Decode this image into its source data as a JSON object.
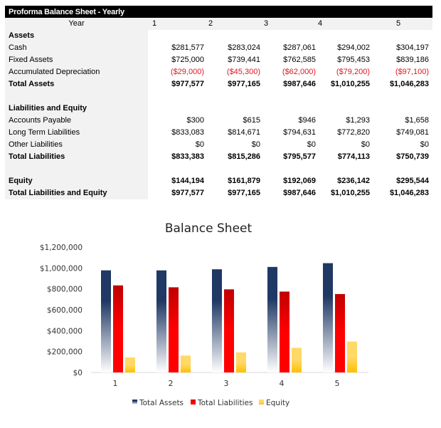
{
  "sheet": {
    "title": "Proforma Balance Sheet - Yearly",
    "year_label": "Year",
    "years": [
      "1",
      "2",
      "3",
      "4",
      "5"
    ],
    "rows": [
      {
        "label": "Assets",
        "bold": true,
        "values": []
      },
      {
        "label": "Cash",
        "values": [
          "$281,577",
          "$283,024",
          "$287,061",
          "$294,002",
          "$304,197"
        ]
      },
      {
        "label": "Fixed Assets",
        "values": [
          "$725,000",
          "$739,441",
          "$762,585",
          "$795,453",
          "$839,186"
        ]
      },
      {
        "label": "Accumulated Depreciation",
        "negative": true,
        "values": [
          "($29,000)",
          "($45,300)",
          "($62,000)",
          "($79,200)",
          "($97,100)"
        ]
      },
      {
        "label": "Total Assets",
        "bold": true,
        "values": [
          "$977,577",
          "$977,165",
          "$987,646",
          "$1,010,255",
          "$1,046,283"
        ]
      },
      {
        "label": "",
        "values": []
      },
      {
        "label": "Liabilities and Equity",
        "bold": true,
        "values": []
      },
      {
        "label": "Accounts Payable",
        "values": [
          "$300",
          "$615",
          "$946",
          "$1,293",
          "$1,658"
        ]
      },
      {
        "label": "Long Term Liabilities",
        "values": [
          "$833,083",
          "$814,671",
          "$794,631",
          "$772,820",
          "$749,081"
        ]
      },
      {
        "label": "Other Liabilities",
        "values": [
          "$0",
          "$0",
          "$0",
          "$0",
          "$0"
        ]
      },
      {
        "label": "Total Liabilities",
        "bold": true,
        "values": [
          "$833,383",
          "$815,286",
          "$795,577",
          "$774,113",
          "$750,739"
        ]
      },
      {
        "label": "",
        "values": []
      },
      {
        "label": "Equity",
        "bold": true,
        "values": [
          "$144,194",
          "$161,879",
          "$192,069",
          "$236,142",
          "$295,544"
        ]
      },
      {
        "label": "Total Liabilities and Equity",
        "bold": true,
        "values": [
          "$977,577",
          "$977,165",
          "$987,646",
          "$1,010,255",
          "$1,046,283"
        ]
      }
    ],
    "negative_color": "#e0141e"
  },
  "chart_data": {
    "type": "bar",
    "title": "Balance Sheet",
    "categories": [
      "1",
      "2",
      "3",
      "4",
      "5"
    ],
    "ylim": [
      0,
      1200000
    ],
    "yticks": [
      "$0",
      "$200,000",
      "$400,000",
      "$600,000",
      "$800,000",
      "$1,000,000",
      "$1,200,000"
    ],
    "grid": false,
    "legend": "bottom",
    "series": [
      {
        "name": "Total Assets",
        "color": "#1f3864",
        "values": [
          977577,
          977165,
          987646,
          1010255,
          1046283
        ]
      },
      {
        "name": "Total Liabilities",
        "color": "#ff0000",
        "values": [
          833383,
          815286,
          795577,
          774113,
          750739
        ]
      },
      {
        "name": "Equity",
        "color": "#ffc000",
        "values": [
          144194,
          161879,
          192069,
          236142,
          295544
        ]
      }
    ]
  }
}
